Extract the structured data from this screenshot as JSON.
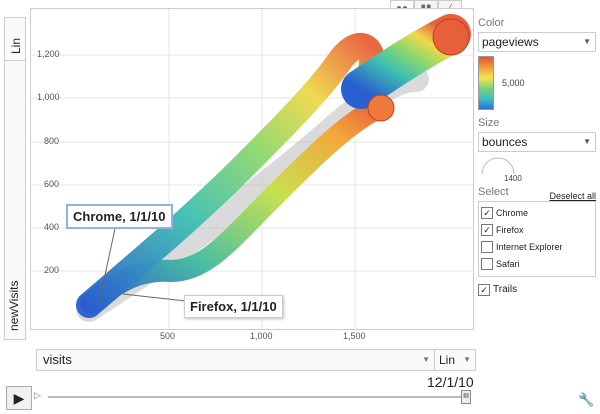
{
  "y_axis": {
    "scale": "Lin",
    "variable": "newVisits",
    "ticks": [
      "1,200",
      "1,000",
      "800",
      "600",
      "400",
      "200"
    ]
  },
  "x_axis": {
    "variable": "visits",
    "scale": "Lin",
    "ticks": [
      "500",
      "1,000",
      "1,500"
    ]
  },
  "chart_types": {
    "bubble_icon": "bubble-chart-icon",
    "bar_icon": "bar-chart-icon",
    "line_icon": "line-chart-icon"
  },
  "color_panel": {
    "heading": "Color",
    "value": "pageviews",
    "legend_mid": "5,000"
  },
  "size_panel": {
    "heading": "Size",
    "value": "bounces",
    "legend_value": "1400"
  },
  "select_panel": {
    "heading": "Select",
    "deselect_all": "Deselect all",
    "items": [
      {
        "label": "Chrome",
        "checked": true
      },
      {
        "label": "Firefox",
        "checked": true
      },
      {
        "label": "Internet Explorer",
        "checked": false
      },
      {
        "label": "Safari",
        "checked": false
      }
    ]
  },
  "trails": {
    "label": "Trails",
    "checked": true
  },
  "labels": {
    "chrome_tip": "Chrome, 1/1/10",
    "firefox_tip": "Firefox, 1/1/10"
  },
  "time": {
    "current": "12/1/10"
  },
  "colors": {
    "accent": "#8fb4e0"
  }
}
